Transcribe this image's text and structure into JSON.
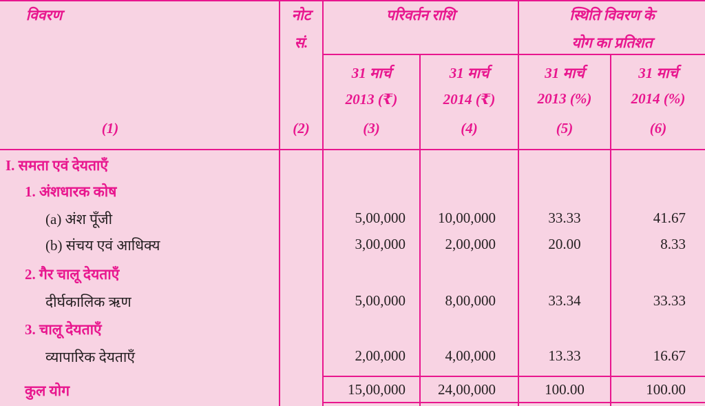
{
  "header": {
    "col1_title": "विवरण",
    "col2_title_line1": "नोट",
    "col2_title_line2": "सं.",
    "group_change": "परिवर्तन राशि",
    "group_percent_line1": "स्थिति विवरण के",
    "group_percent_line2": "योग का प्रतिशत",
    "sub": [
      {
        "l1": "31 मार्च",
        "l2": "2013 (₹)"
      },
      {
        "l1": "31 मार्च",
        "l2": "2014 (₹)"
      },
      {
        "l1": "31 मार्च",
        "l2": "2013 (%)"
      },
      {
        "l1": "31 मार्च",
        "l2": "2014 (%)"
      }
    ],
    "col_numbers": [
      "(1)",
      "(2)",
      "(3)",
      "(4)",
      "(5)",
      "(6)"
    ]
  },
  "rows": [
    {
      "label": "I. समता एवं देयताएँ",
      "style": "heading",
      "values": [
        "",
        "",
        "",
        ""
      ]
    },
    {
      "label": "1. अंशधारक कोष",
      "style": "subheading",
      "values": [
        "",
        "",
        "",
        ""
      ]
    },
    {
      "label": "(a) अंश पूँजी",
      "style": "item",
      "values": [
        "5,00,000",
        "10,00,000",
        "33.33",
        "41.67"
      ]
    },
    {
      "label": "(b) संचय एवं आधिक्य",
      "style": "item",
      "values": [
        "3,00,000",
        "2,00,000",
        "20.00",
        "8.33"
      ]
    },
    {
      "label": "2. गैर चालू देयताएँ",
      "style": "subheading",
      "values": [
        "",
        "",
        "",
        ""
      ]
    },
    {
      "label": "दीर्घकालिक ऋण",
      "style": "item",
      "values": [
        "5,00,000",
        "8,00,000",
        "33.34",
        "33.33"
      ]
    },
    {
      "label": "3. चालू देयताएँ",
      "style": "subheading",
      "values": [
        "",
        "",
        "",
        ""
      ]
    },
    {
      "label": "व्यापारिक देयताएँ",
      "style": "item",
      "values": [
        "2,00,000",
        "4,00,000",
        "13.33",
        "16.67"
      ]
    }
  ],
  "total": {
    "label": "कुल योग",
    "values": [
      "15,00,000",
      "24,00,000",
      "100.00",
      "100.00"
    ]
  },
  "colors": {
    "line": "#e8168e",
    "background": "#f8d3e3",
    "text": "#231f20"
  }
}
